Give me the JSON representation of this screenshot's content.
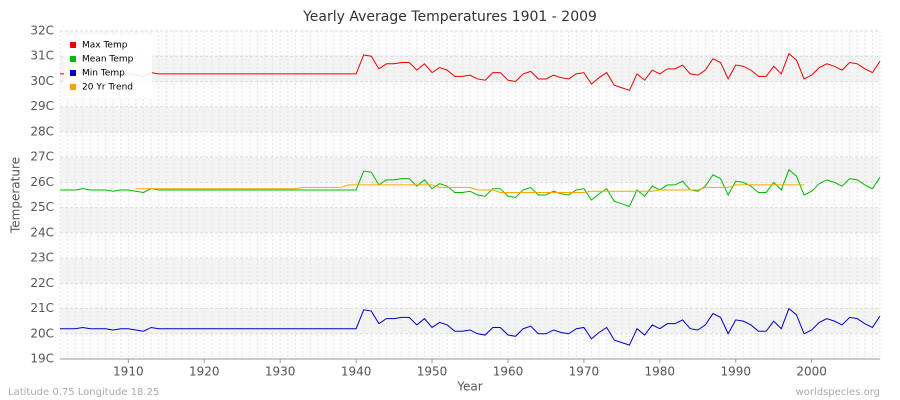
{
  "chart_data": {
    "type": "line",
    "title": "Yearly Average Temperatures 1901 - 2009",
    "x_label": "Year",
    "y_label": "Temperature",
    "footer_left": "Latitude 0.75 Longitude 18.25",
    "footer_right": "worldspecies.org",
    "legend": "top-left",
    "grid": true,
    "xlim": [
      1901,
      2009
    ],
    "xticks": [
      1910,
      1920,
      1930,
      1940,
      1950,
      1960,
      1970,
      1980,
      1990,
      2000
    ],
    "ylim": [
      19,
      32
    ],
    "yticks": [
      {
        "value": 19,
        "label": "19C"
      },
      {
        "value": 20,
        "label": "20C"
      },
      {
        "value": 21,
        "label": "21C"
      },
      {
        "value": 22,
        "label": "22C"
      },
      {
        "value": 23,
        "label": "23C"
      },
      {
        "value": 24,
        "label": "24C"
      },
      {
        "value": 25,
        "label": "25C"
      },
      {
        "value": 26,
        "label": "26C"
      },
      {
        "value": 27,
        "label": "27C"
      },
      {
        "value": 28,
        "label": "28C"
      },
      {
        "value": 29,
        "label": "29C"
      },
      {
        "value": 30,
        "label": "30C"
      },
      {
        "value": 31,
        "label": "31C"
      },
      {
        "value": 32,
        "label": "32C"
      }
    ],
    "x": [
      1901,
      1902,
      1903,
      1904,
      1905,
      1906,
      1907,
      1908,
      1909,
      1910,
      1911,
      1912,
      1913,
      1914,
      1915,
      1916,
      1917,
      1918,
      1919,
      1920,
      1921,
      1922,
      1923,
      1924,
      1925,
      1926,
      1927,
      1928,
      1929,
      1930,
      1931,
      1932,
      1933,
      1934,
      1935,
      1936,
      1937,
      1938,
      1939,
      1940,
      1941,
      1942,
      1943,
      1944,
      1945,
      1946,
      1947,
      1948,
      1949,
      1950,
      1951,
      1952,
      1953,
      1954,
      1955,
      1956,
      1957,
      1958,
      1959,
      1960,
      1961,
      1962,
      1963,
      1964,
      1965,
      1966,
      1967,
      1968,
      1969,
      1970,
      1971,
      1972,
      1973,
      1974,
      1975,
      1976,
      1977,
      1978,
      1979,
      1980,
      1981,
      1982,
      1983,
      1984,
      1985,
      1986,
      1987,
      1988,
      1989,
      1990,
      1991,
      1992,
      1993,
      1994,
      1995,
      1996,
      1997,
      1998,
      1999,
      2000,
      2001,
      2002,
      2003,
      2004,
      2005,
      2006,
      2007,
      2008,
      2009
    ],
    "series": [
      {
        "name": "Max Temp",
        "color": "#ee0000",
        "values": [
          30.3,
          30.3,
          30.3,
          30.35,
          30.3,
          30.3,
          30.3,
          30.25,
          30.3,
          30.3,
          30.25,
          30.2,
          30.35,
          30.3,
          30.3,
          30.3,
          30.3,
          30.3,
          30.3,
          30.3,
          30.3,
          30.3,
          30.3,
          30.3,
          30.3,
          30.3,
          30.3,
          30.3,
          30.3,
          30.3,
          30.3,
          30.3,
          30.3,
          30.3,
          30.3,
          30.3,
          30.3,
          30.3,
          30.3,
          30.3,
          31.05,
          31.0,
          30.5,
          30.7,
          30.7,
          30.75,
          30.75,
          30.45,
          30.7,
          30.35,
          30.55,
          30.45,
          30.2,
          30.2,
          30.25,
          30.1,
          30.05,
          30.35,
          30.35,
          30.05,
          30.0,
          30.3,
          30.4,
          30.1,
          30.1,
          30.25,
          30.15,
          30.1,
          30.3,
          30.35,
          29.9,
          30.15,
          30.35,
          29.85,
          29.75,
          29.65,
          30.3,
          30.05,
          30.45,
          30.3,
          30.5,
          30.5,
          30.65,
          30.3,
          30.25,
          30.45,
          30.9,
          30.75,
          30.1,
          30.65,
          30.6,
          30.45,
          30.2,
          30.2,
          30.6,
          30.3,
          31.1,
          30.85,
          30.1,
          30.25,
          30.55,
          30.7,
          30.6,
          30.45,
          30.75,
          30.7,
          30.5,
          30.35,
          30.8
        ]
      },
      {
        "name": "Mean Temp",
        "color": "#00bb00",
        "values": [
          25.7,
          25.7,
          25.7,
          25.75,
          25.7,
          25.7,
          25.7,
          25.65,
          25.7,
          25.7,
          25.65,
          25.6,
          25.75,
          25.7,
          25.7,
          25.7,
          25.7,
          25.7,
          25.7,
          25.7,
          25.7,
          25.7,
          25.7,
          25.7,
          25.7,
          25.7,
          25.7,
          25.7,
          25.7,
          25.7,
          25.7,
          25.7,
          25.7,
          25.7,
          25.7,
          25.7,
          25.7,
          25.7,
          25.7,
          25.7,
          26.45,
          26.4,
          25.9,
          26.1,
          26.1,
          26.15,
          26.15,
          25.85,
          26.1,
          25.75,
          25.95,
          25.85,
          25.6,
          25.6,
          25.65,
          25.5,
          25.45,
          25.75,
          25.75,
          25.45,
          25.4,
          25.7,
          25.8,
          25.5,
          25.5,
          25.65,
          25.55,
          25.5,
          25.7,
          25.75,
          25.3,
          25.55,
          25.75,
          25.25,
          25.15,
          25.05,
          25.7,
          25.45,
          25.85,
          25.7,
          25.9,
          25.9,
          26.05,
          25.7,
          25.65,
          25.85,
          26.3,
          26.15,
          25.5,
          26.05,
          26.0,
          25.85,
          25.6,
          25.6,
          26.0,
          25.7,
          26.5,
          26.25,
          25.5,
          25.65,
          25.95,
          26.1,
          26.0,
          25.85,
          26.15,
          26.1,
          25.9,
          25.75,
          26.2
        ]
      },
      {
        "name": "Min Temp",
        "color": "#0000cc",
        "values": [
          20.2,
          20.2,
          20.2,
          20.25,
          20.2,
          20.2,
          20.2,
          20.15,
          20.2,
          20.2,
          20.15,
          20.1,
          20.25,
          20.2,
          20.2,
          20.2,
          20.2,
          20.2,
          20.2,
          20.2,
          20.2,
          20.2,
          20.2,
          20.2,
          20.2,
          20.2,
          20.2,
          20.2,
          20.2,
          20.2,
          20.2,
          20.2,
          20.2,
          20.2,
          20.2,
          20.2,
          20.2,
          20.2,
          20.2,
          20.2,
          20.95,
          20.9,
          20.4,
          20.6,
          20.6,
          20.65,
          20.65,
          20.35,
          20.6,
          20.25,
          20.45,
          20.35,
          20.1,
          20.1,
          20.15,
          20.0,
          19.95,
          20.25,
          20.25,
          19.95,
          19.9,
          20.2,
          20.3,
          20.0,
          20.0,
          20.15,
          20.05,
          20.0,
          20.2,
          20.25,
          19.8,
          20.05,
          20.25,
          19.75,
          19.65,
          19.55,
          20.2,
          19.95,
          20.35,
          20.2,
          20.4,
          20.4,
          20.55,
          20.2,
          20.15,
          20.35,
          20.8,
          20.65,
          20.0,
          20.55,
          20.5,
          20.35,
          20.1,
          20.1,
          20.5,
          20.2,
          21.0,
          20.75,
          20.0,
          20.15,
          20.45,
          20.6,
          20.5,
          20.35,
          20.65,
          20.6,
          20.4,
          20.25,
          20.7
        ]
      },
      {
        "name": "20 Yr Trend",
        "color": "#ffa500",
        "values": [
          null,
          null,
          null,
          null,
          null,
          null,
          null,
          null,
          null,
          null,
          25.75,
          25.75,
          25.75,
          25.75,
          25.75,
          25.75,
          25.75,
          25.75,
          25.75,
          25.75,
          25.75,
          25.75,
          25.75,
          25.75,
          25.75,
          25.75,
          25.75,
          25.75,
          25.75,
          25.75,
          25.75,
          25.75,
          25.8,
          25.8,
          25.8,
          25.8,
          25.8,
          25.8,
          25.9,
          25.9,
          25.9,
          25.9,
          25.9,
          25.9,
          25.9,
          25.9,
          25.9,
          25.9,
          25.9,
          25.9,
          25.8,
          25.8,
          25.8,
          25.8,
          25.8,
          25.7,
          25.7,
          25.7,
          25.6,
          25.6,
          25.6,
          25.6,
          25.6,
          25.6,
          25.6,
          25.6,
          25.6,
          25.6,
          25.6,
          25.6,
          25.65,
          25.65,
          25.65,
          25.65,
          25.65,
          25.65,
          25.65,
          25.65,
          25.65,
          25.7,
          25.7,
          25.7,
          25.7,
          25.7,
          25.7,
          25.8,
          25.8,
          25.8,
          25.8,
          25.9,
          25.9,
          25.9,
          25.9,
          25.9,
          25.9,
          25.9,
          25.9,
          25.9,
          25.9,
          null,
          null,
          null,
          null,
          null,
          null,
          null,
          null,
          null,
          null
        ]
      }
    ]
  }
}
